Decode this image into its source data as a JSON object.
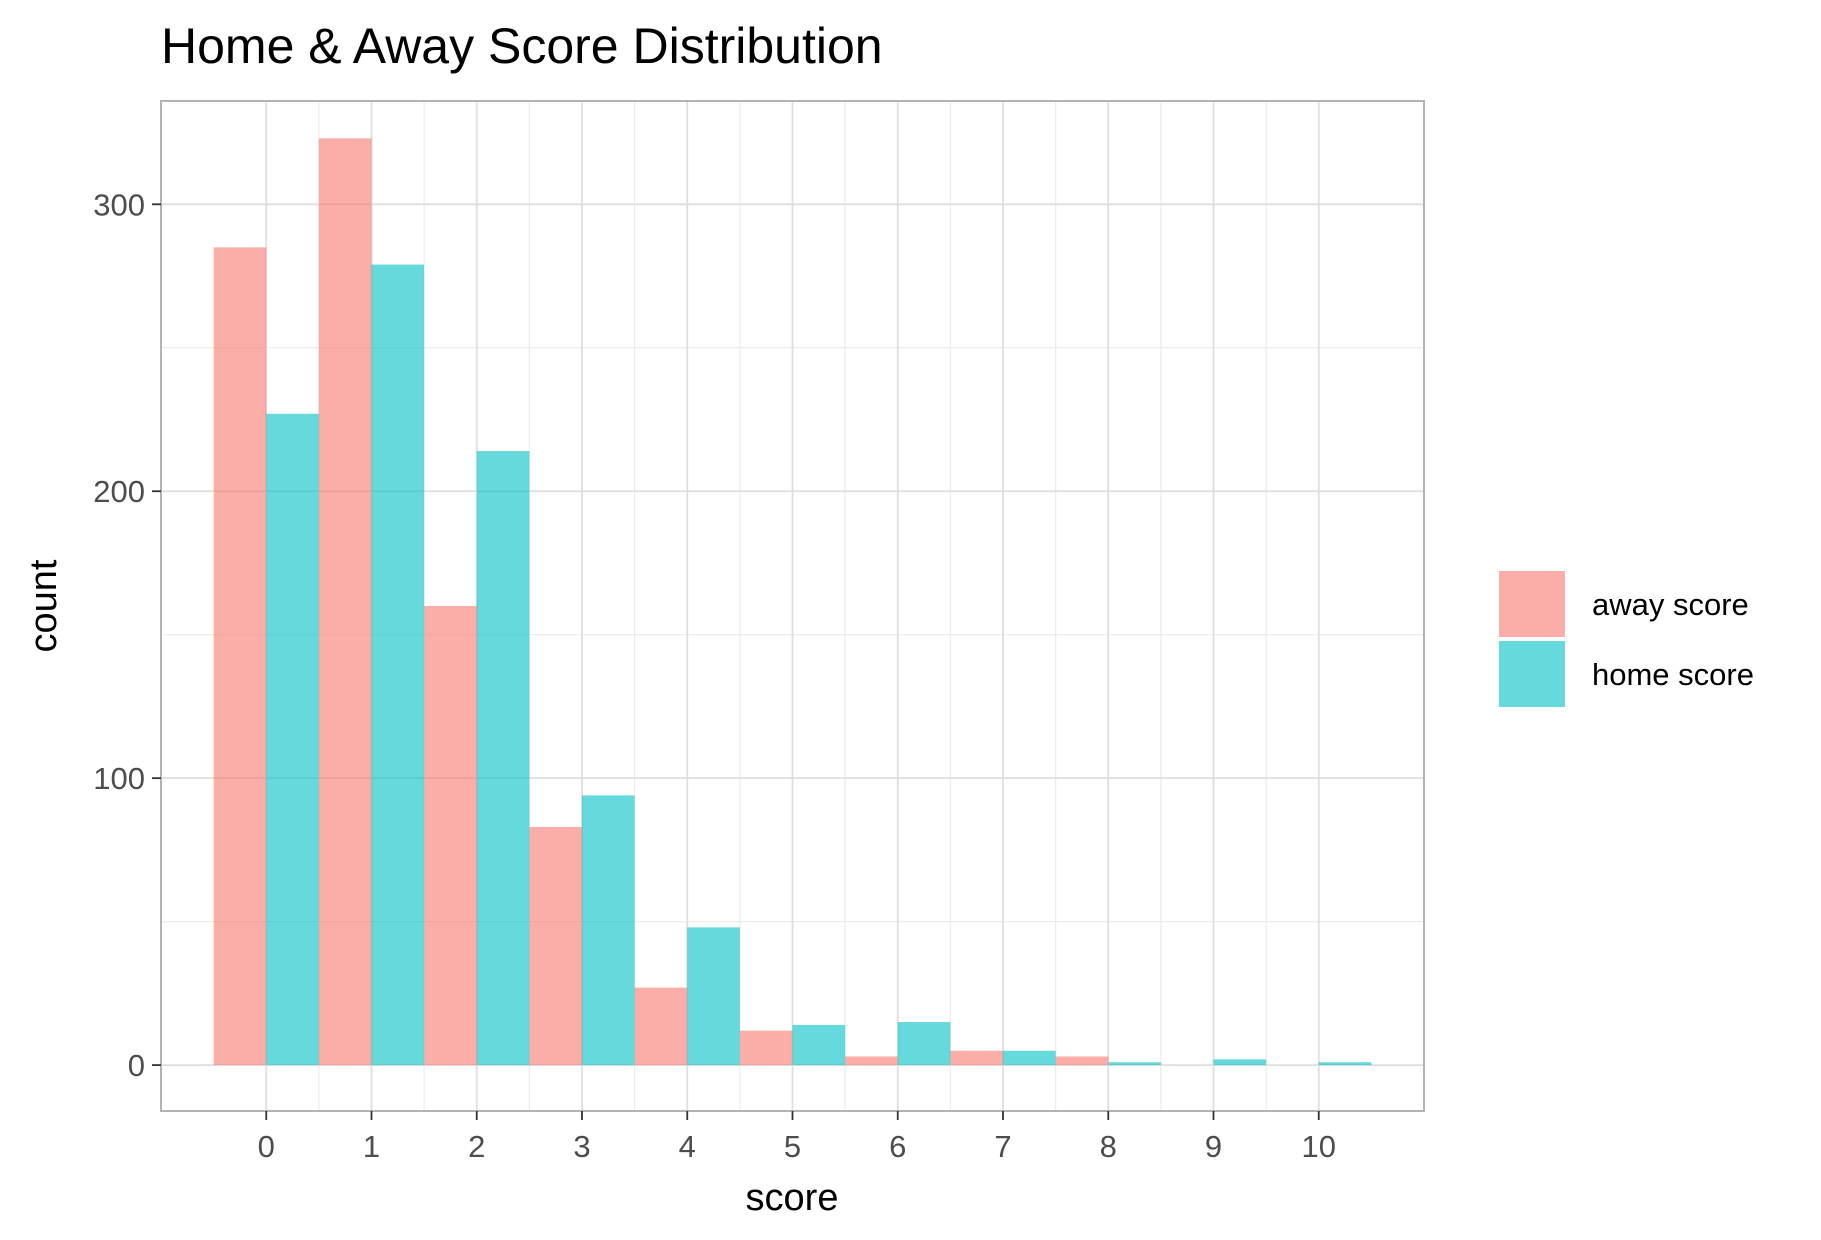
{
  "chart_data": {
    "type": "bar",
    "title": "Home & Away Score Distribution",
    "xlabel": "score",
    "ylabel": "count",
    "x": [
      0,
      1,
      2,
      3,
      4,
      5,
      6,
      7,
      8,
      9,
      10
    ],
    "x_tick_labels": [
      "0",
      "1",
      "2",
      "3",
      "4",
      "5",
      "6",
      "7",
      "8",
      "9",
      "10"
    ],
    "y_ticks": [
      0,
      100,
      200,
      300
    ],
    "y_tick_labels": [
      "0",
      "100",
      "200",
      "300"
    ],
    "xlim": [
      -1,
      11
    ],
    "ylim": [
      -16,
      336
    ],
    "grid": true,
    "legend_position": "right",
    "series": [
      {
        "name": "away score",
        "color": "#F8766D",
        "values": [
          285,
          323,
          160,
          83,
          27,
          12,
          3,
          5,
          3,
          0,
          0
        ]
      },
      {
        "name": "home score",
        "color": "#00BFC4",
        "values": [
          227,
          279,
          214,
          94,
          48,
          14,
          15,
          5,
          1,
          2,
          1
        ]
      }
    ]
  }
}
